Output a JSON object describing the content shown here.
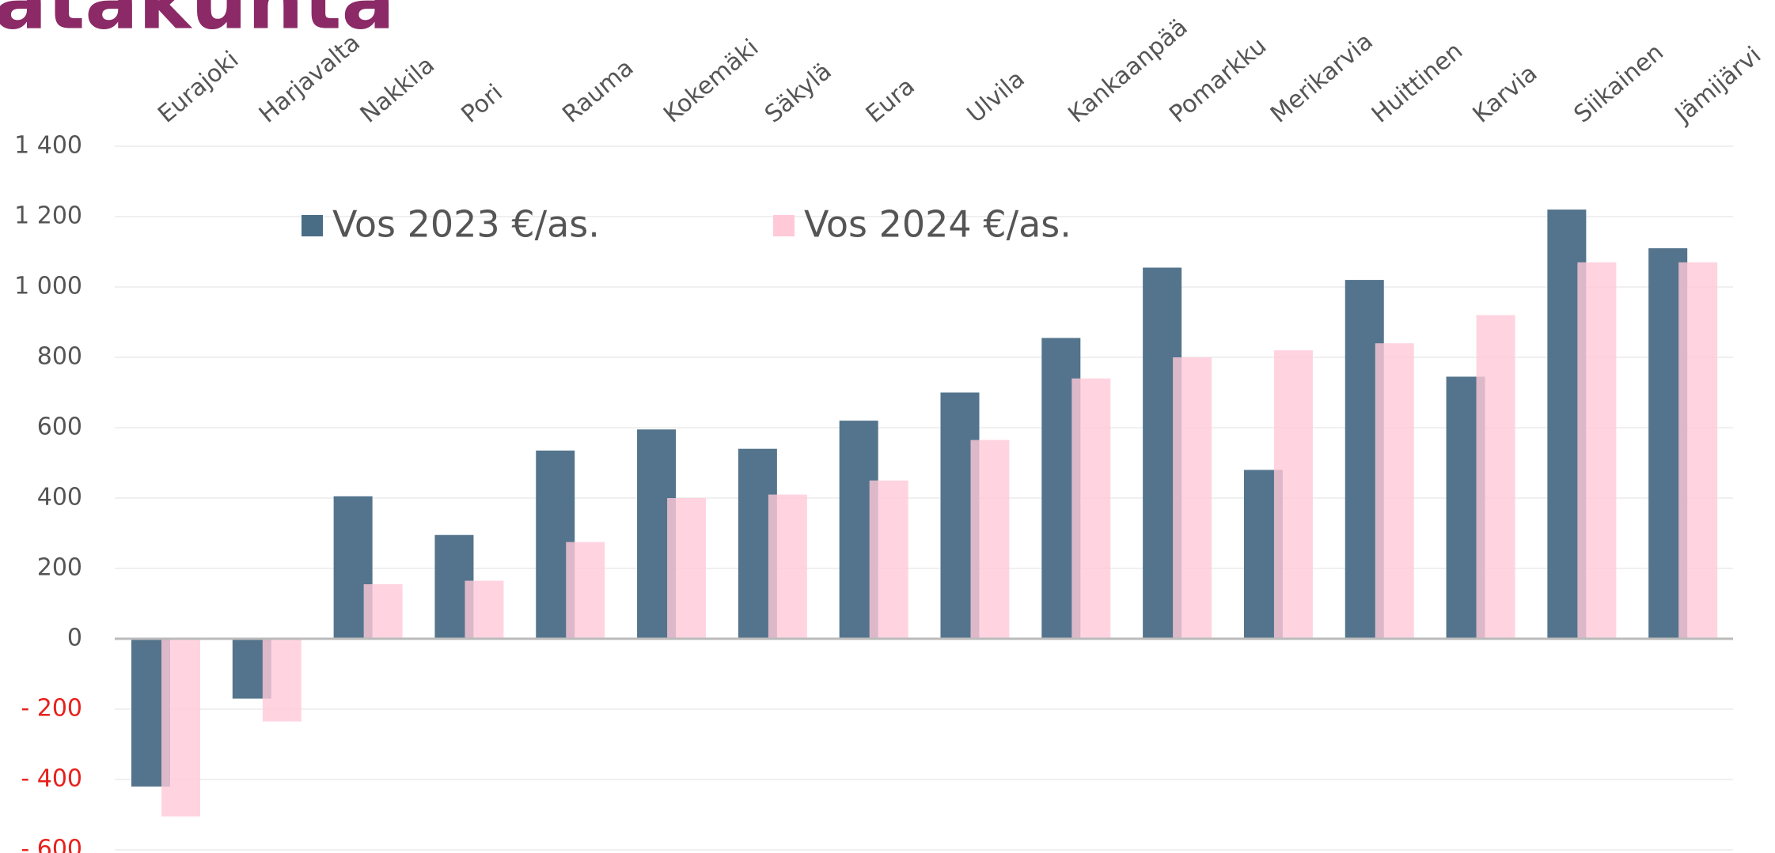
{
  "chart_data": {
    "type": "bar",
    "title": "atakunta",
    "categories": [
      "Eurajoki",
      "Harjavalta",
      "Nakkila",
      "Pori",
      "Rauma",
      "Kokemäki",
      "Säkylä",
      "Eura",
      "Ulvila",
      "Kankaanpää",
      "Pomarkku",
      "Merikarvia",
      "Huittinen",
      "Karvia",
      "Siikainen",
      "Jämijärvi"
    ],
    "series": [
      {
        "name": "Vos 2023 €/as.",
        "color": "#4a6d86",
        "values": [
          -420,
          -170,
          405,
          295,
          535,
          595,
          540,
          620,
          700,
          855,
          1055,
          480,
          1020,
          745,
          1220,
          1110
        ]
      },
      {
        "name": "Vos 2024 €/as.",
        "color": "#ffc9d8",
        "values": [
          -505,
          -235,
          155,
          165,
          275,
          400,
          410,
          450,
          565,
          740,
          800,
          820,
          840,
          920,
          1070,
          1070
        ]
      }
    ],
    "ylim": [
      -600,
      1400
    ],
    "yticks": [
      {
        "value": -600,
        "label": "- 600"
      },
      {
        "value": -400,
        "label": "- 400"
      },
      {
        "value": -200,
        "label": "- 200"
      },
      0,
      200,
      400,
      600,
      800,
      {
        "value": 1000,
        "label": "1 000"
      },
      {
        "value": 1200,
        "label": "1 200"
      },
      {
        "value": 1400,
        "label": "1 400"
      }
    ],
    "negative_tick_color": "#e8201c",
    "grid": true
  }
}
